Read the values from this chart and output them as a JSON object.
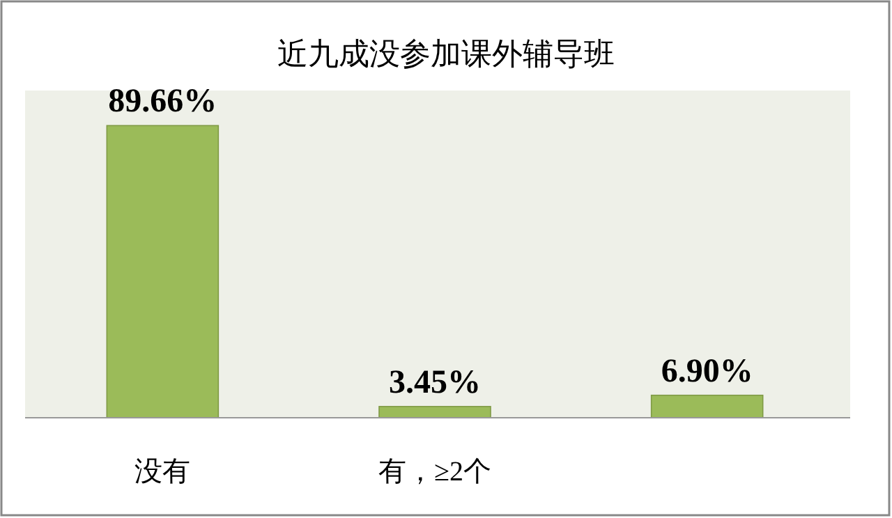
{
  "chart_data": {
    "type": "bar",
    "title": "近九成没参加课外辅导班",
    "categories": [
      "没有",
      "有，≥2个",
      null
    ],
    "values": [
      89.66,
      3.45,
      6.9
    ],
    "color": "#9bbb59",
    "value_labels": [
      "89.66%",
      "3.45%",
      "6.90%"
    ]
  }
}
